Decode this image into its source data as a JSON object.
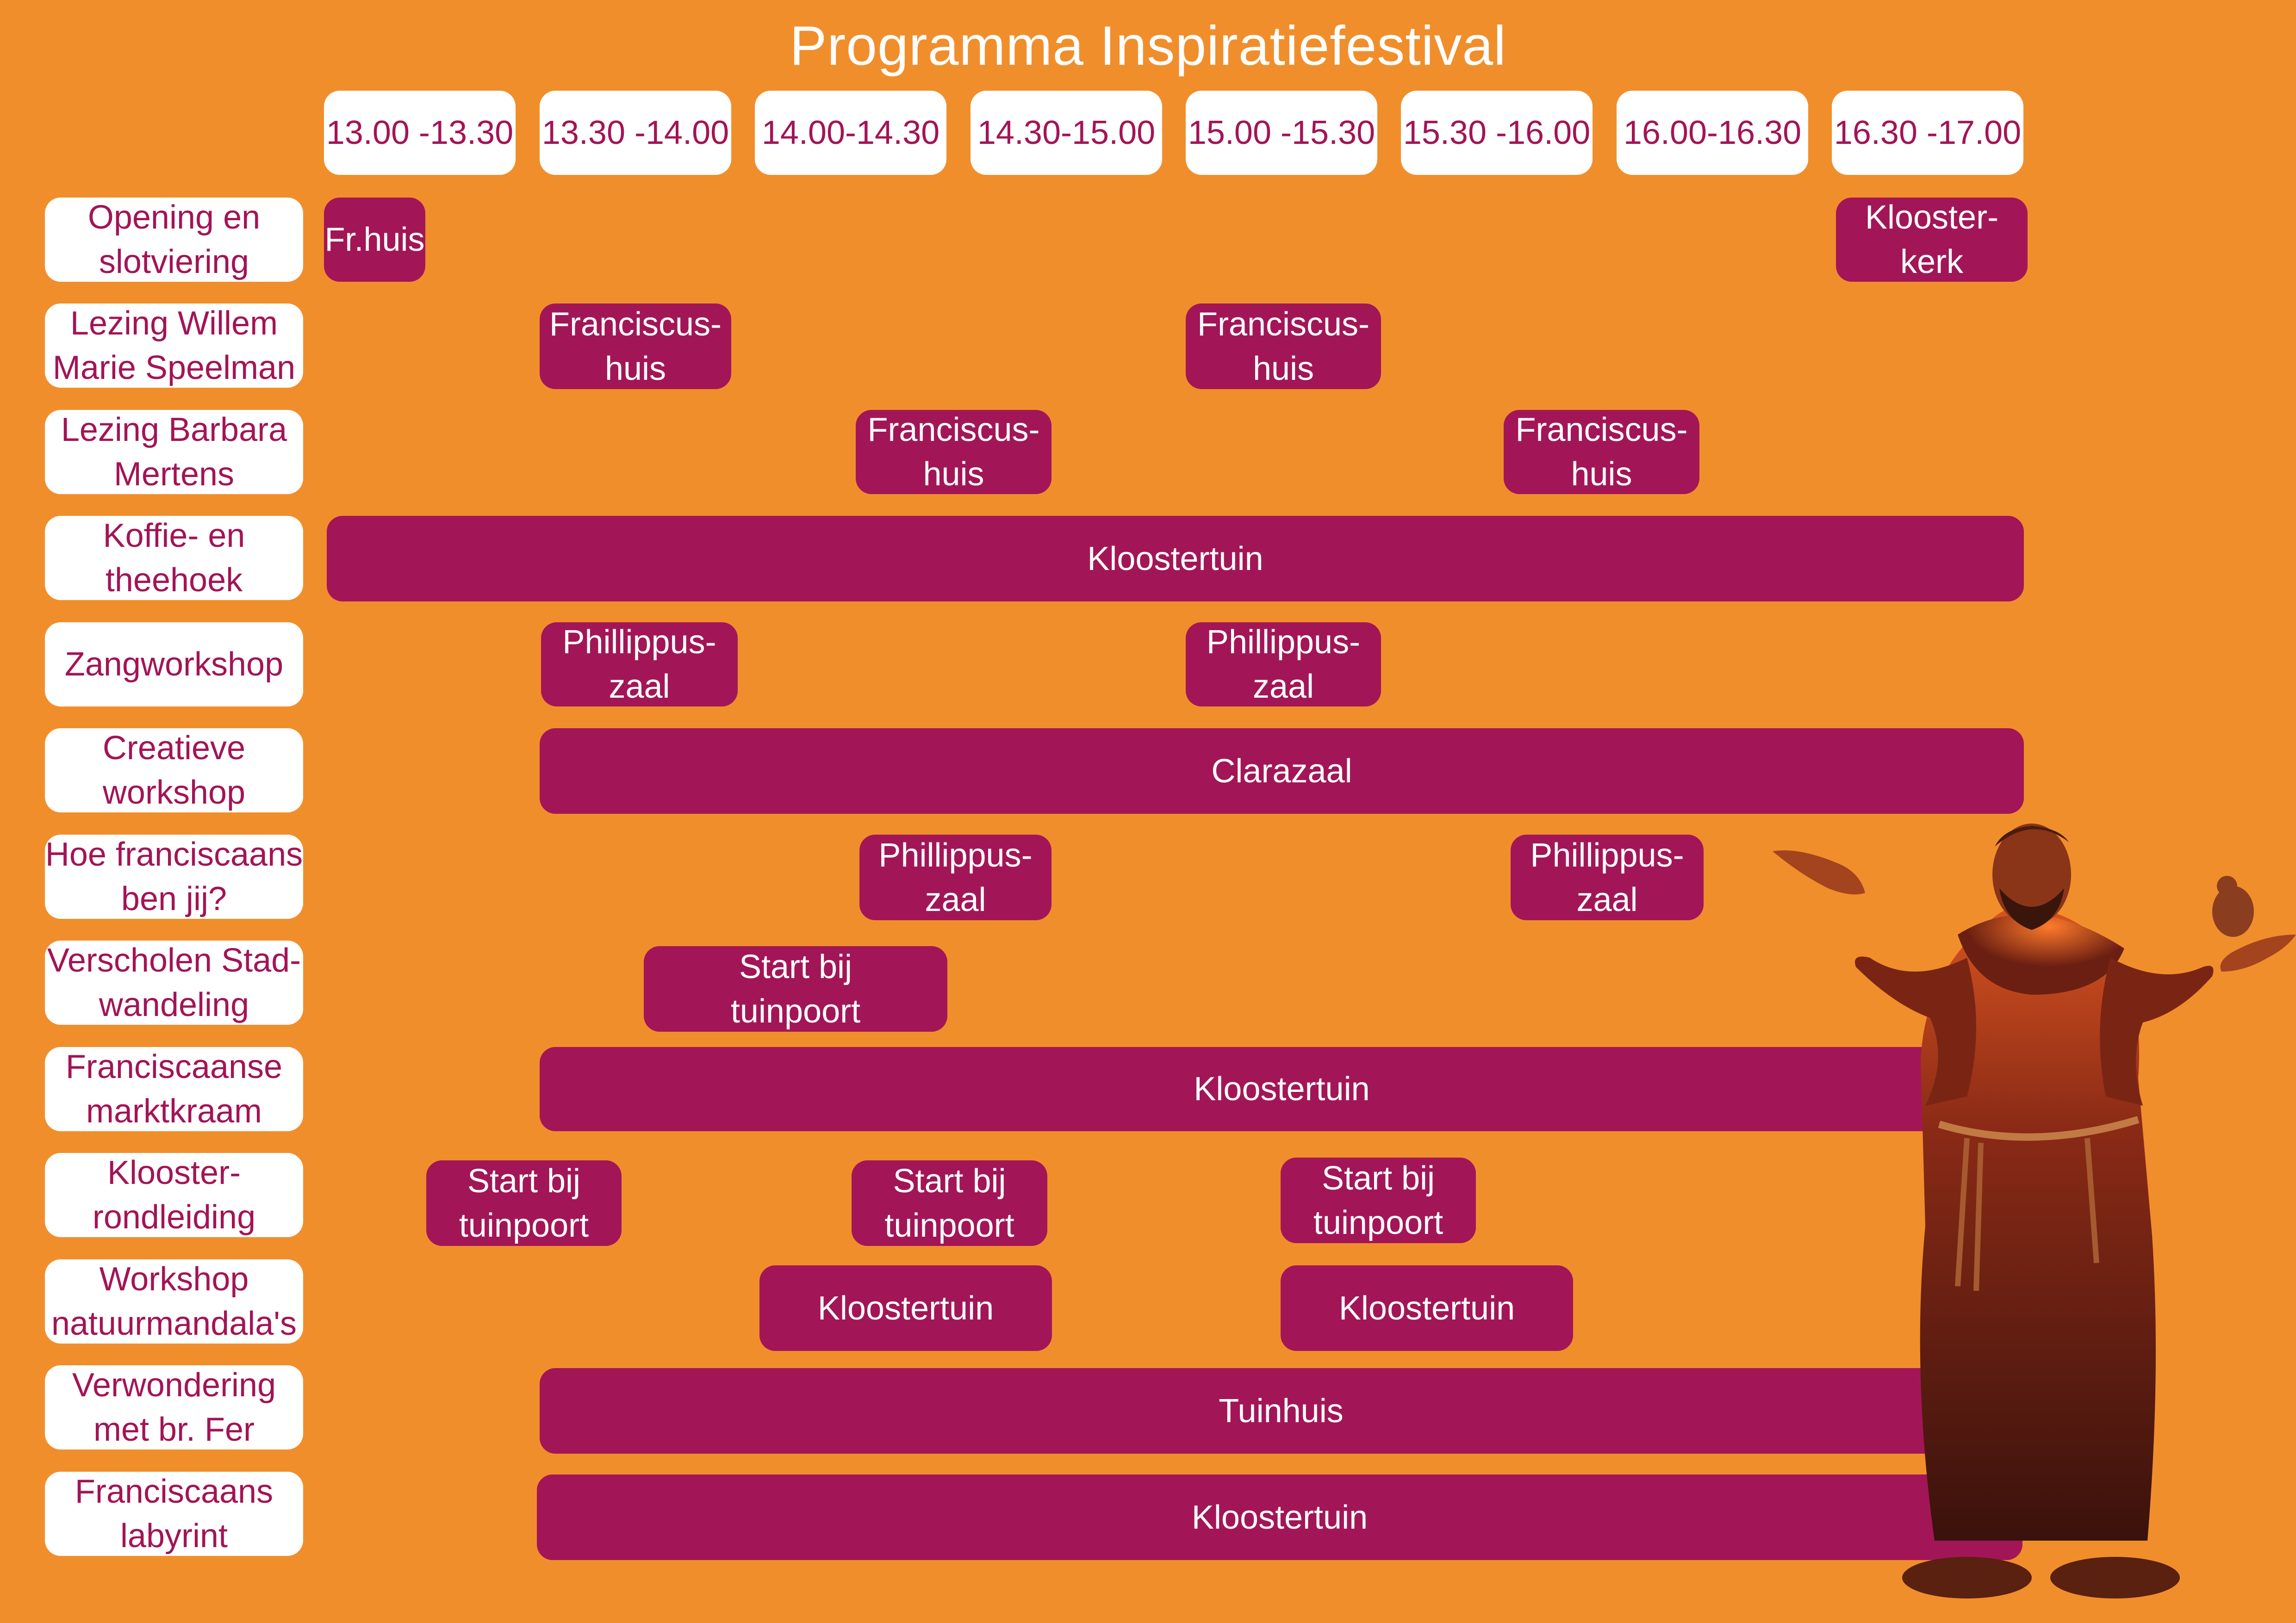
{
  "title": "Programma Inspiratiefestival",
  "timeslots": [
    "13.00 -13.30",
    "13.30 -14.00",
    "14.00-14.30",
    "14.30-15.00",
    "15.00 -15.30",
    "15.30 -16.00",
    "16.00-16.30",
    "16.30 -17.00"
  ],
  "rows": [
    {
      "label": "Opening en\nslotviering",
      "events": [
        "Fr.huis",
        "Klooster-\nkerk"
      ]
    },
    {
      "label": "Lezing Willem\nMarie Speelman",
      "events": [
        "Franciscus-\nhuis",
        "Franciscus-\nhuis"
      ]
    },
    {
      "label": "Lezing Barbara\nMertens",
      "events": [
        "Franciscus-\nhuis",
        "Franciscus-\nhuis"
      ]
    },
    {
      "label": "Koffie- en\ntheehoek",
      "events": [
        "Kloostertuin"
      ]
    },
    {
      "label": "Zangworkshop",
      "events": [
        "Phillippus-\nzaal",
        "Phillippus-\nzaal"
      ]
    },
    {
      "label": "Creatieve\nworkshop",
      "events": [
        "Clarazaal"
      ]
    },
    {
      "label": "Hoe franciscaans\nben jij?",
      "events": [
        "Phillippus-\nzaal",
        "Phillippus-\nzaal"
      ]
    },
    {
      "label": "Verscholen Stad-\nwandeling",
      "events": [
        "Start bij\ntuinpoort"
      ]
    },
    {
      "label": "Franciscaanse\nmarktkraam",
      "events": [
        "Kloostertuin"
      ]
    },
    {
      "label": "Klooster-\nrondleiding",
      "events": [
        "Start bij\ntuinpoort",
        "Start bij\ntuinpoort",
        "Start bij\ntuinpoort"
      ]
    },
    {
      "label": "Workshop\nnatuurmandala's",
      "events": [
        "Kloostertuin",
        "Kloostertuin"
      ]
    },
    {
      "label": "Verwondering\nmet br. Fer",
      "events": [
        "Tuinhuis"
      ]
    },
    {
      "label": "Franciscaans\nlabyrint",
      "events": [
        "Kloostertuin"
      ]
    }
  ],
  "illustration": "friar-with-dove-illustration",
  "colors": {
    "background": "#f18e2c",
    "accent": "#a21657",
    "text_on_white": "#a31455"
  }
}
